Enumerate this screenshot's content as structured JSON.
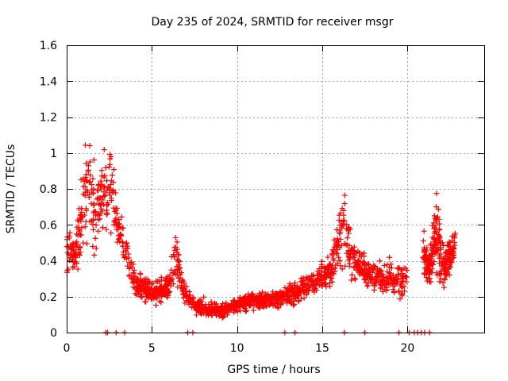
{
  "chart_data": {
    "type": "scatter",
    "title": "Day 235 of 2024, SRMTID for receiver msgr",
    "xlabel": "GPS time / hours",
    "ylabel": "SRMTID / TECUs",
    "xlim": [
      0,
      24.5
    ],
    "ylim": [
      0,
      1.6
    ],
    "xticks": [
      0,
      5,
      10,
      15,
      20
    ],
    "xtick_labels": [
      "0",
      "5",
      "10",
      "15",
      "20"
    ],
    "yticks": [
      0,
      0.2,
      0.4,
      0.6,
      0.8,
      1.0,
      1.2,
      1.4,
      1.6
    ],
    "ytick_labels": [
      "0",
      "0.2",
      "0.4",
      "0.6",
      "0.8",
      "1",
      "1.2",
      "1.4",
      "1.6"
    ],
    "grid": true,
    "marker": "+",
    "color": "#ff0000",
    "point_count": 1800,
    "trend": [
      {
        "x": 0.0,
        "y": 0.45,
        "spread": 0.16
      },
      {
        "x": 0.5,
        "y": 0.45,
        "spread": 0.18
      },
      {
        "x": 0.8,
        "y": 0.6,
        "spread": 0.35
      },
      {
        "x": 1.3,
        "y": 0.85,
        "spread": 0.45
      },
      {
        "x": 1.7,
        "y": 0.6,
        "spread": 0.4
      },
      {
        "x": 2.2,
        "y": 0.8,
        "spread": 0.35
      },
      {
        "x": 2.7,
        "y": 0.75,
        "spread": 0.25
      },
      {
        "x": 3.0,
        "y": 0.6,
        "spread": 0.15
      },
      {
        "x": 3.5,
        "y": 0.45,
        "spread": 0.15
      },
      {
        "x": 4.0,
        "y": 0.28,
        "spread": 0.1
      },
      {
        "x": 5.0,
        "y": 0.22,
        "spread": 0.09
      },
      {
        "x": 6.0,
        "y": 0.25,
        "spread": 0.1
      },
      {
        "x": 6.4,
        "y": 0.45,
        "spread": 0.2
      },
      {
        "x": 6.8,
        "y": 0.25,
        "spread": 0.08
      },
      {
        "x": 7.5,
        "y": 0.15,
        "spread": 0.06
      },
      {
        "x": 9.0,
        "y": 0.12,
        "spread": 0.06
      },
      {
        "x": 10.5,
        "y": 0.17,
        "spread": 0.06
      },
      {
        "x": 12.0,
        "y": 0.18,
        "spread": 0.06
      },
      {
        "x": 13.5,
        "y": 0.22,
        "spread": 0.09
      },
      {
        "x": 14.5,
        "y": 0.28,
        "spread": 0.1
      },
      {
        "x": 15.5,
        "y": 0.35,
        "spread": 0.14
      },
      {
        "x": 16.2,
        "y": 0.6,
        "spread": 0.28
      },
      {
        "x": 16.8,
        "y": 0.4,
        "spread": 0.14
      },
      {
        "x": 17.5,
        "y": 0.35,
        "spread": 0.12
      },
      {
        "x": 18.5,
        "y": 0.3,
        "spread": 0.12
      },
      {
        "x": 19.5,
        "y": 0.3,
        "spread": 0.14
      },
      {
        "x": 20.0,
        "y": 0.3,
        "spread": 0.1
      }
    ],
    "segment2": [
      {
        "x": 20.9,
        "y": 0.45,
        "spread": 0.18
      },
      {
        "x": 21.3,
        "y": 0.35,
        "spread": 0.12
      },
      {
        "x": 21.7,
        "y": 0.55,
        "spread": 0.3
      },
      {
        "x": 22.2,
        "y": 0.35,
        "spread": 0.15
      },
      {
        "x": 22.8,
        "y": 0.5,
        "spread": 0.12
      }
    ],
    "zero_points_x": [
      2.3,
      2.4,
      2.9,
      3.4,
      7.1,
      7.4,
      12.8,
      13.4,
      16.3,
      17.5,
      19.5,
      20.1,
      20.4,
      20.6,
      20.8,
      21.0,
      21.3
    ]
  }
}
